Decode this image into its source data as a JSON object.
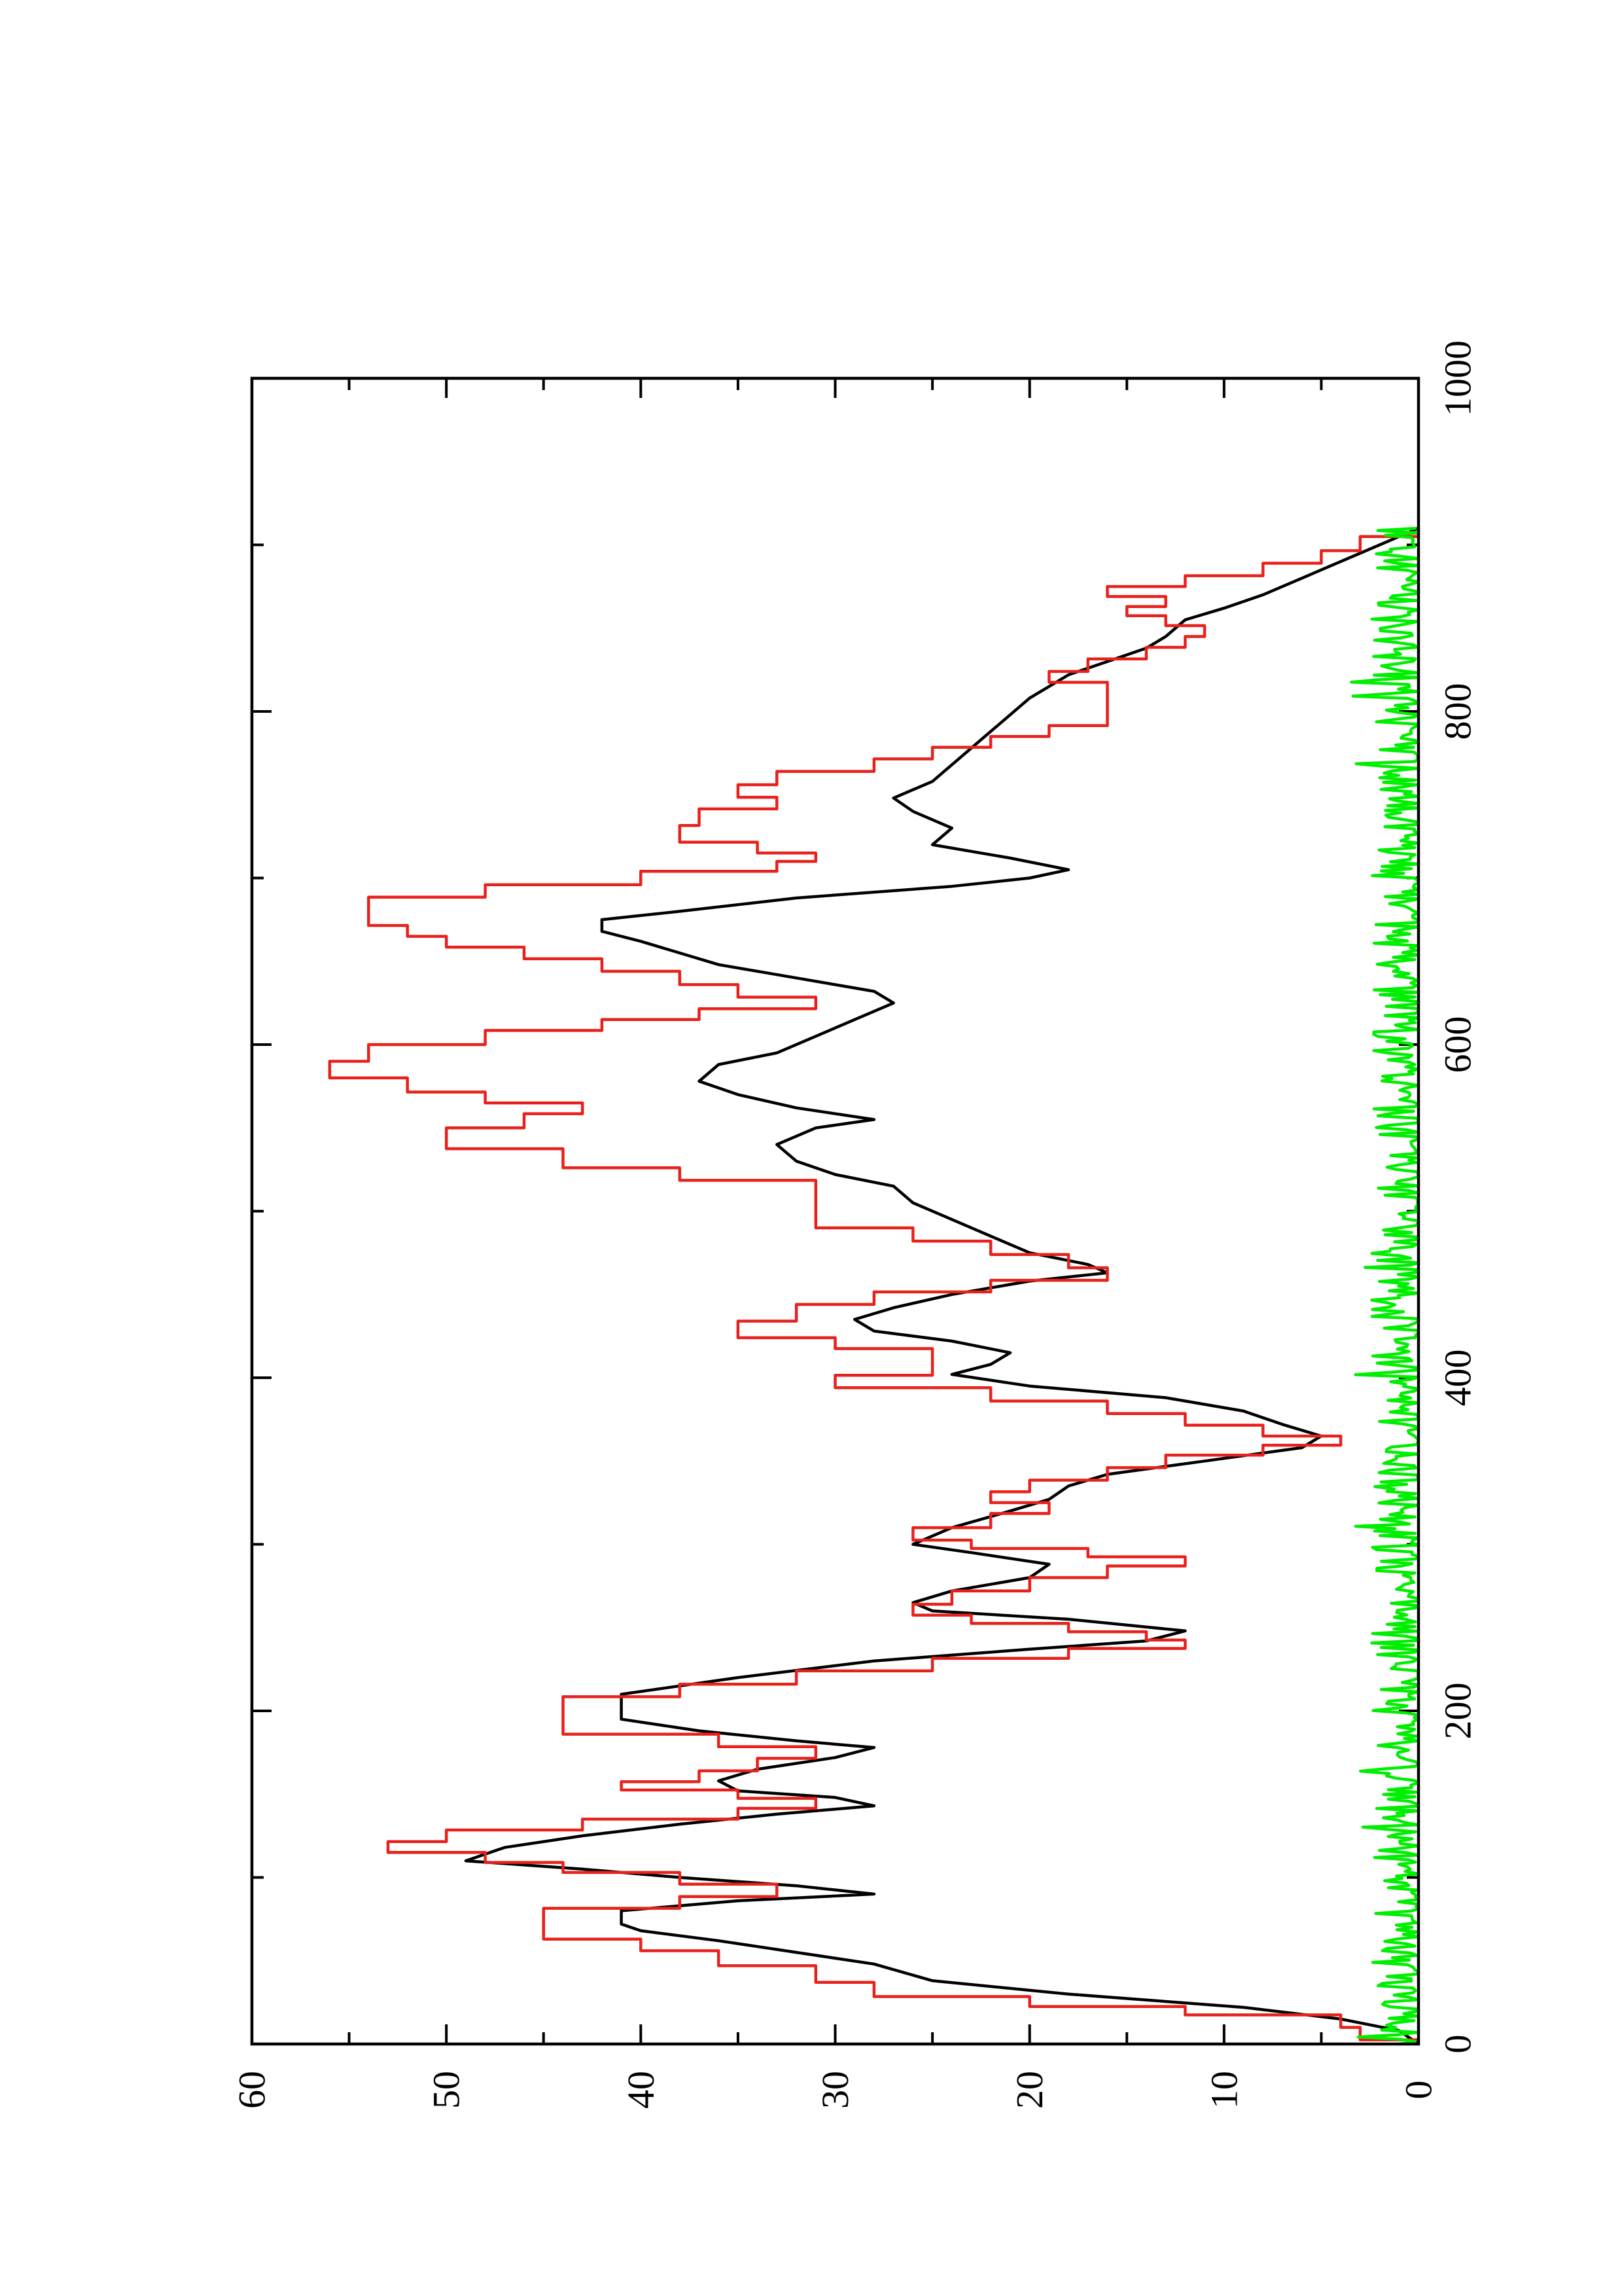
{
  "chart_data": {
    "type": "line",
    "title": "",
    "xlabel": "",
    "ylabel": "",
    "orientation": "rotated-90-clockwise",
    "xlim": [
      0,
      1000
    ],
    "ylim": [
      0,
      60
    ],
    "x_ticks": [
      0,
      200,
      400,
      600,
      800,
      1000
    ],
    "x_minor_ticks": [
      100,
      300,
      500,
      700,
      900
    ],
    "y_ticks": [
      0,
      10,
      20,
      30,
      40,
      50,
      60
    ],
    "grid": false,
    "legend": "none",
    "series": [
      {
        "color": "#000000",
        "style": "smooth",
        "points": [
          [
            0,
            0
          ],
          [
            8,
            1
          ],
          [
            15,
            4
          ],
          [
            22,
            9
          ],
          [
            30,
            18
          ],
          [
            38,
            25
          ],
          [
            48,
            28
          ],
          [
            55,
            32
          ],
          [
            62,
            36
          ],
          [
            68,
            40
          ],
          [
            72,
            41
          ],
          [
            80,
            41
          ],
          [
            86,
            35
          ],
          [
            90,
            28
          ],
          [
            95,
            32
          ],
          [
            100,
            38
          ],
          [
            105,
            43
          ],
          [
            110,
            49
          ],
          [
            118,
            47
          ],
          [
            125,
            43
          ],
          [
            132,
            38
          ],
          [
            138,
            33
          ],
          [
            143,
            28
          ],
          [
            148,
            30
          ],
          [
            152,
            35
          ],
          [
            158,
            36
          ],
          [
            165,
            34
          ],
          [
            172,
            30
          ],
          [
            178,
            28
          ],
          [
            182,
            32
          ],
          [
            188,
            37
          ],
          [
            195,
            41
          ],
          [
            210,
            41
          ],
          [
            220,
            35
          ],
          [
            230,
            28
          ],
          [
            237,
            20
          ],
          [
            242,
            14
          ],
          [
            248,
            12
          ],
          [
            255,
            18
          ],
          [
            260,
            25
          ],
          [
            265,
            26
          ],
          [
            272,
            24
          ],
          [
            280,
            20
          ],
          [
            288,
            19
          ],
          [
            295,
            23
          ],
          [
            300,
            26
          ],
          [
            310,
            24
          ],
          [
            320,
            21
          ],
          [
            327,
            19
          ],
          [
            335,
            18
          ],
          [
            342,
            16
          ],
          [
            350,
            11
          ],
          [
            358,
            6
          ],
          [
            365,
            5
          ],
          [
            372,
            7
          ],
          [
            380,
            9
          ],
          [
            388,
            13
          ],
          [
            395,
            20
          ],
          [
            402,
            24
          ],
          [
            408,
            22
          ],
          [
            415,
            21
          ],
          [
            422,
            24
          ],
          [
            428,
            28
          ],
          [
            435,
            29
          ],
          [
            442,
            27
          ],
          [
            450,
            24
          ],
          [
            458,
            20
          ],
          [
            463,
            16
          ],
          [
            468,
            17
          ],
          [
            475,
            20
          ],
          [
            485,
            22
          ],
          [
            495,
            24
          ],
          [
            505,
            26
          ],
          [
            515,
            27
          ],
          [
            522,
            30
          ],
          [
            530,
            32
          ],
          [
            540,
            33
          ],
          [
            550,
            31
          ],
          [
            555,
            28
          ],
          [
            562,
            32
          ],
          [
            570,
            35
          ],
          [
            578,
            37
          ],
          [
            588,
            36
          ],
          [
            595,
            33
          ],
          [
            605,
            31
          ],
          [
            615,
            29
          ],
          [
            625,
            27
          ],
          [
            632,
            28
          ],
          [
            640,
            32
          ],
          [
            648,
            36
          ],
          [
            655,
            38
          ],
          [
            662,
            40
          ],
          [
            668,
            42
          ],
          [
            675,
            42
          ],
          [
            680,
            38
          ],
          [
            688,
            32
          ],
          [
            695,
            24
          ],
          [
            700,
            20
          ],
          [
            705,
            18
          ],
          [
            712,
            21
          ],
          [
            720,
            25
          ],
          [
            730,
            24
          ],
          [
            740,
            26
          ],
          [
            748,
            27
          ],
          [
            758,
            25
          ],
          [
            768,
            24
          ],
          [
            778,
            23
          ],
          [
            788,
            22
          ],
          [
            798,
            21
          ],
          [
            808,
            20
          ],
          [
            815,
            19
          ],
          [
            822,
            18
          ],
          [
            830,
            16
          ],
          [
            838,
            14
          ],
          [
            845,
            13
          ],
          [
            855,
            12
          ],
          [
            862,
            10
          ],
          [
            870,
            8
          ],
          [
            880,
            6
          ],
          [
            890,
            4
          ],
          [
            900,
            2
          ],
          [
            910,
            0
          ]
        ]
      },
      {
        "color": "#e8211c",
        "style": "step",
        "points": [
          [
            0,
            0
          ],
          [
            5,
            3
          ],
          [
            15,
            4
          ],
          [
            20,
            12
          ],
          [
            25,
            20
          ],
          [
            32,
            28
          ],
          [
            42,
            31
          ],
          [
            52,
            36
          ],
          [
            60,
            40
          ],
          [
            66,
            45
          ],
          [
            78,
            45
          ],
          [
            85,
            38
          ],
          [
            92,
            33
          ],
          [
            100,
            38
          ],
          [
            106,
            44
          ],
          [
            112,
            48
          ],
          [
            118,
            53
          ],
          [
            125,
            50
          ],
          [
            132,
            43
          ],
          [
            138,
            35
          ],
          [
            145,
            31
          ],
          [
            150,
            35
          ],
          [
            155,
            41
          ],
          [
            160,
            37
          ],
          [
            168,
            34
          ],
          [
            175,
            31
          ],
          [
            182,
            36
          ],
          [
            190,
            44
          ],
          [
            205,
            44
          ],
          [
            212,
            38
          ],
          [
            220,
            32
          ],
          [
            228,
            25
          ],
          [
            235,
            18
          ],
          [
            240,
            12
          ],
          [
            245,
            14
          ],
          [
            250,
            18
          ],
          [
            255,
            23
          ],
          [
            260,
            26
          ],
          [
            268,
            24
          ],
          [
            276,
            20
          ],
          [
            284,
            16
          ],
          [
            290,
            12
          ],
          [
            295,
            17
          ],
          [
            300,
            23
          ],
          [
            305,
            26
          ],
          [
            315,
            22
          ],
          [
            322,
            19
          ],
          [
            328,
            22
          ],
          [
            335,
            20
          ],
          [
            342,
            16
          ],
          [
            350,
            13
          ],
          [
            357,
            8
          ],
          [
            362,
            4
          ],
          [
            368,
            8
          ],
          [
            375,
            12
          ],
          [
            382,
            16
          ],
          [
            390,
            22
          ],
          [
            398,
            30
          ],
          [
            405,
            25
          ],
          [
            415,
            25
          ],
          [
            420,
            30
          ],
          [
            428,
            35
          ],
          [
            440,
            32
          ],
          [
            448,
            28
          ],
          [
            455,
            22
          ],
          [
            462,
            16
          ],
          [
            470,
            18
          ],
          [
            478,
            22
          ],
          [
            486,
            26
          ],
          [
            494,
            31
          ],
          [
            515,
            31
          ],
          [
            522,
            38
          ],
          [
            530,
            44
          ],
          [
            545,
            50
          ],
          [
            555,
            46
          ],
          [
            562,
            43
          ],
          [
            568,
            48
          ],
          [
            575,
            52
          ],
          [
            585,
            56
          ],
          [
            595,
            54
          ],
          [
            605,
            48
          ],
          [
            612,
            42
          ],
          [
            618,
            37
          ],
          [
            625,
            31
          ],
          [
            632,
            35
          ],
          [
            640,
            38
          ],
          [
            648,
            42
          ],
          [
            655,
            46
          ],
          [
            662,
            50
          ],
          [
            668,
            52
          ],
          [
            675,
            54
          ],
          [
            685,
            54
          ],
          [
            692,
            48
          ],
          [
            700,
            40
          ],
          [
            708,
            33
          ],
          [
            712,
            31
          ],
          [
            718,
            34
          ],
          [
            725,
            38
          ],
          [
            738,
            37
          ],
          [
            745,
            33
          ],
          [
            752,
            35
          ],
          [
            760,
            33
          ],
          [
            768,
            28
          ],
          [
            775,
            25
          ],
          [
            782,
            22
          ],
          [
            788,
            19
          ],
          [
            795,
            16
          ],
          [
            815,
            16
          ],
          [
            820,
            19
          ],
          [
            828,
            17
          ],
          [
            835,
            14
          ],
          [
            842,
            12
          ],
          [
            848,
            11
          ],
          [
            855,
            13
          ],
          [
            860,
            15
          ],
          [
            866,
            13
          ],
          [
            872,
            16
          ],
          [
            878,
            12
          ],
          [
            885,
            8
          ],
          [
            893,
            5
          ],
          [
            900,
            3
          ],
          [
            910,
            0
          ]
        ]
      },
      {
        "color": "#00ee00",
        "style": "noise",
        "x_range": [
          0,
          910
        ],
        "y_range": [
          0,
          2.5
        ]
      }
    ]
  }
}
